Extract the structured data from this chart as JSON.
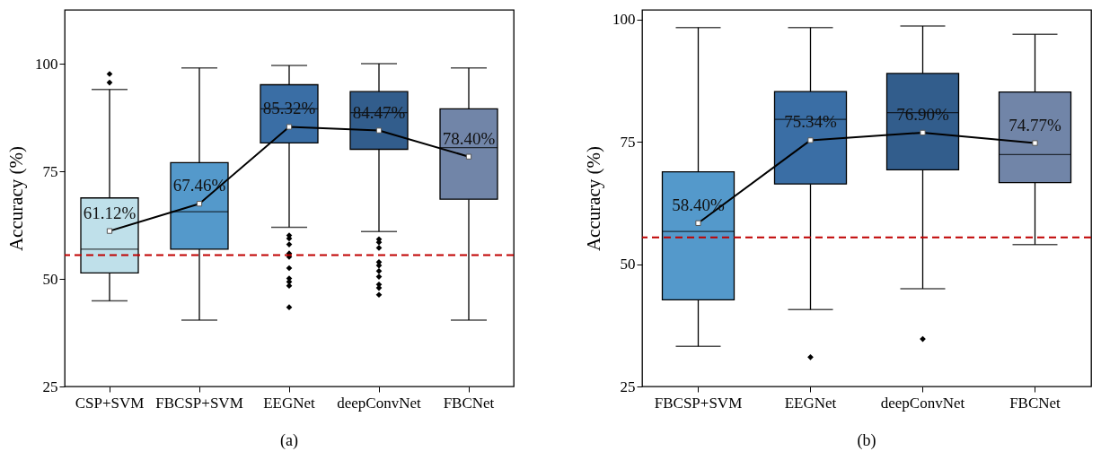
{
  "chart_data": [
    {
      "type": "box",
      "annotations": [
        "(a)"
      ],
      "ylabel": "Accuracy (%)",
      "ylim": [
        25,
        112.5
      ],
      "yticks": [
        25,
        50,
        75,
        100
      ],
      "grid": false,
      "marker": "square",
      "categories": [
        "CSP+SVM",
        "FBCSP+SVM",
        "EEGNet",
        "deepConvNet",
        "FBCNet"
      ],
      "colors": [
        "#bfe0ea",
        "#5499cb",
        "#3a6ea5",
        "#325d8c",
        "#7185a8"
      ],
      "boxes": [
        {
          "low": 44.9,
          "q1": 51.4,
          "median": 56.9,
          "q3": 68.8,
          "high": 94.0,
          "outliers": [
            97.6,
            95.6
          ]
        },
        {
          "low": 40.4,
          "q1": 56.9,
          "median": 65.6,
          "q3": 77.0,
          "high": 99.0
        },
        {
          "low": 62.0,
          "q1": 81.6,
          "median": 89.5,
          "q3": 95.1,
          "high": 99.6,
          "outliers": [
            60.1,
            59.4,
            58.0,
            55.9,
            55.1,
            52.5,
            50.1,
            49.3,
            48.4,
            43.4
          ]
        },
        {
          "low": 61.0,
          "q1": 80.1,
          "median": 88.6,
          "q3": 93.5,
          "high": 100.0,
          "outliers": [
            59.2,
            58.5,
            57.2,
            53.9,
            53.1,
            51.8,
            50.5,
            48.7,
            47.9,
            46.3
          ]
        },
        {
          "low": 40.4,
          "q1": 68.5,
          "median": 80.5,
          "q3": 89.5,
          "high": 99.0
        }
      ],
      "series": [
        {
          "type": "line",
          "color": "#000000",
          "values": [
            61.12,
            67.46,
            85.32,
            84.47,
            78.4
          ],
          "value_labels": [
            "61.12%",
            "67.46%",
            "85.32%",
            "84.47%",
            "78.40%"
          ]
        }
      ],
      "ref_lines": [
        {
          "axis": "y",
          "value": 55.5,
          "color": "#c00000",
          "line_style": "dashed"
        }
      ]
    },
    {
      "type": "box",
      "annotations": [
        "(b)"
      ],
      "ylabel": "Accuracy (%)",
      "ylim": [
        25,
        102
      ],
      "yticks": [
        25,
        50,
        75,
        100
      ],
      "grid": false,
      "marker": "square",
      "categories": [
        "FBCSP+SVM",
        "EEGNet",
        "deepConvNet",
        "FBCNet"
      ],
      "colors": [
        "#5499cb",
        "#3a6ea5",
        "#325d8c",
        "#7185a8"
      ],
      "boxes": [
        {
          "low": 33.2,
          "q1": 42.7,
          "median": 56.7,
          "q3": 68.9,
          "high": 98.4
        },
        {
          "low": 40.7,
          "q1": 66.4,
          "median": 79.6,
          "q3": 85.3,
          "high": 98.4,
          "outliers": [
            31.0
          ]
        },
        {
          "low": 45.0,
          "q1": 69.3,
          "median": 81.0,
          "q3": 89.0,
          "high": 98.7,
          "outliers": [
            34.7
          ]
        },
        {
          "low": 54.0,
          "q1": 66.7,
          "median": 72.4,
          "q3": 85.2,
          "high": 97.0
        }
      ],
      "series": [
        {
          "type": "line",
          "color": "#000000",
          "values": [
            58.4,
            75.34,
            76.9,
            74.77
          ],
          "value_labels": [
            "58.40%",
            "75.34%",
            "76.90%",
            "74.77%"
          ]
        }
      ],
      "ref_lines": [
        {
          "axis": "y",
          "value": 55.5,
          "color": "#c00000",
          "line_style": "dashed"
        }
      ]
    }
  ]
}
